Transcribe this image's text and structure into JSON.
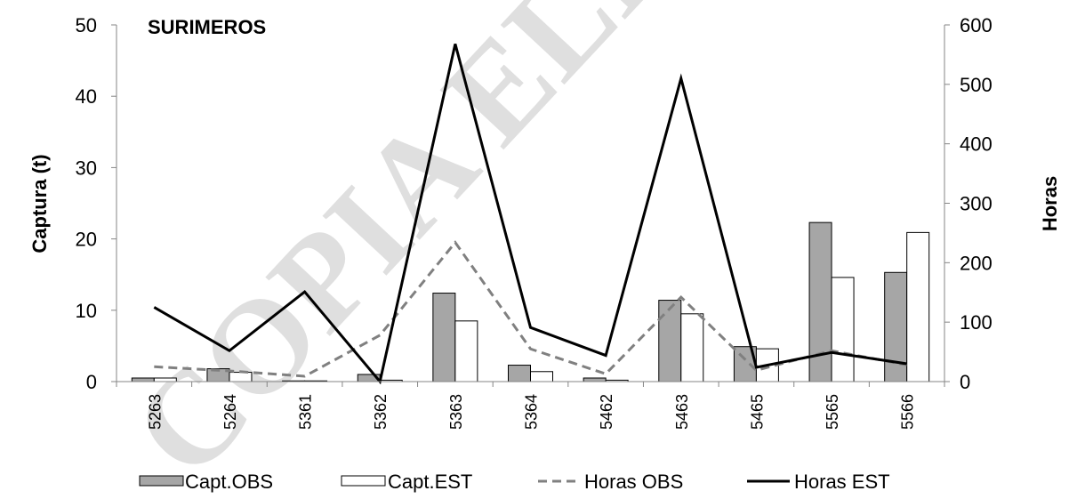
{
  "chart_data": {
    "type": "bar",
    "title": "SURIMEROS",
    "ylabel": "Captura  (t)",
    "y2label": "Horas",
    "ylim": [
      0,
      50
    ],
    "y2lim": [
      0,
      600
    ],
    "yticks": [
      "0",
      "10",
      "20",
      "30",
      "40",
      "50"
    ],
    "y2ticks": [
      "0",
      "100",
      "200",
      "300",
      "400",
      "500",
      "600"
    ],
    "categories": [
      "5263",
      "5264",
      "5361",
      "5362",
      "5363",
      "5364",
      "5462",
      "5463",
      "5465",
      "5565",
      "5566"
    ],
    "series": [
      {
        "name": "Capt.OBS",
        "kind": "bar",
        "axis": "left",
        "color": "#a6a6a6",
        "values": [
          0.5,
          1.8,
          0.1,
          1.0,
          12.4,
          2.3,
          0.5,
          11.4,
          4.9,
          22.3,
          15.3
        ]
      },
      {
        "name": "Capt.EST",
        "kind": "bar",
        "axis": "left",
        "color": "#ffffff",
        "values": [
          0.5,
          1.3,
          0.1,
          0.2,
          8.5,
          1.4,
          0.2,
          9.5,
          4.6,
          14.6,
          20.9
        ]
      },
      {
        "name": "Horas OBS",
        "kind": "line",
        "axis": "right",
        "color": "#808080",
        "dash": true,
        "values": [
          25,
          18,
          9,
          78,
          234,
          55,
          13,
          142,
          19,
          52,
          28
        ]
      },
      {
        "name": "Horas EST",
        "kind": "line",
        "axis": "right",
        "color": "#000000",
        "dash": false,
        "values": [
          125,
          52,
          151,
          0,
          568,
          91,
          44,
          510,
          24,
          49,
          30
        ]
      }
    ],
    "legend_position": "bottom",
    "grid": false
  },
  "watermark": {
    "text": "COPIA ELE"
  }
}
